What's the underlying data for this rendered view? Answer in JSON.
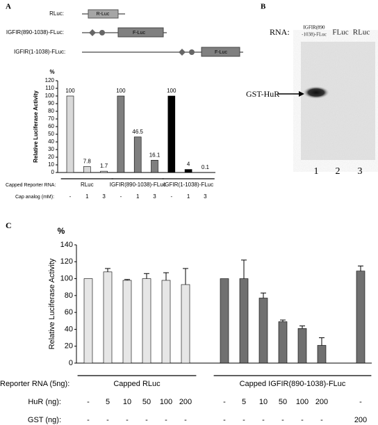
{
  "panels": [
    "A",
    "B",
    "C"
  ],
  "constructs": [
    {
      "name": "RLuc:",
      "box": "R-Luc"
    },
    {
      "name": "IGFIR(890-1038)-FLuc:",
      "box": "F-Luc"
    },
    {
      "name": "IGFIR(1-1038)-FLuc:",
      "box": "F-Luc"
    }
  ],
  "gel": {
    "row_label": "RNA:",
    "lane_headers": [
      "IGFIR(890",
      "-1038)-FLuc",
      "FLuc",
      "RLuc"
    ],
    "band_label": "GST-HuR",
    "lane_numbers": [
      "1",
      "2",
      "3"
    ]
  },
  "chart_data": [
    {
      "type": "bar",
      "unit_label": "%",
      "y_label": "Relative Luciferase Activity",
      "ylim": [
        0,
        120
      ],
      "yticks": [
        0,
        10,
        20,
        30,
        40,
        50,
        60,
        70,
        80,
        90,
        100,
        110,
        120
      ],
      "categories": [
        "-",
        "1",
        "3",
        "-",
        "1",
        "3",
        "-",
        "1",
        "3"
      ],
      "values": [
        100,
        7.8,
        1.7,
        100,
        46.5,
        16.1,
        100,
        4,
        0.1
      ],
      "colors": [
        "#d9d9d9",
        "#d9d9d9",
        "#d9d9d9",
        "#7f7f7f",
        "#7f7f7f",
        "#7f7f7f",
        "#000000",
        "#000000",
        "#000000"
      ],
      "groups": [
        "RLuc",
        "IGFIR(890-1038)-FLuc",
        "IGFIR(1-1038)-FLuc"
      ],
      "row_labels": [
        "Capped Reporter RNA:",
        "Cap analog (mM):"
      ]
    },
    {
      "type": "bar",
      "unit_label": "%",
      "y_label": "Relative Luciferase Activity",
      "ylim": [
        0,
        140
      ],
      "yticks": [
        0,
        20,
        40,
        60,
        80,
        100,
        120,
        140
      ],
      "categories": [
        "-",
        "5",
        "10",
        "50",
        "100",
        "200",
        null,
        "-",
        "5",
        "10",
        "50",
        "100",
        "200",
        null,
        "-"
      ],
      "gst": [
        "-",
        "-",
        "-",
        "-",
        "-",
        "-",
        null,
        "-",
        "-",
        "-",
        "-",
        "-",
        "-",
        null,
        "200"
      ],
      "values": [
        100,
        108,
        98,
        100,
        98,
        93,
        null,
        100,
        100,
        77,
        49,
        41,
        21,
        null,
        109
      ],
      "errors": [
        null,
        4,
        1,
        6,
        9,
        19,
        null,
        null,
        22,
        6,
        2,
        3,
        9,
        null,
        6
      ],
      "colors": [
        "#e6e6e6",
        "#e6e6e6",
        "#e6e6e6",
        "#e6e6e6",
        "#e6e6e6",
        "#e6e6e6",
        null,
        "#707070",
        "#707070",
        "#707070",
        "#707070",
        "#707070",
        "#707070",
        null,
        "#707070"
      ],
      "groups": [
        "Capped RLuc",
        "Capped IGFIR(890-1038)-FLuc"
      ],
      "row_labels": [
        "Reporter RNA (5ng):",
        "HuR (ng):",
        "GST (ng):"
      ]
    }
  ]
}
